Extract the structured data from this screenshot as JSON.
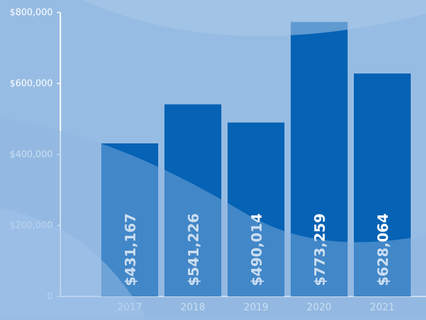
{
  "colors": {
    "background": "#97bce3",
    "bar": "#0562b4",
    "axis": "#ffffff",
    "text": "#ffffff"
  },
  "chart_data": {
    "type": "bar",
    "title": "",
    "xlabel": "",
    "ylabel": "",
    "categories": [
      "2017",
      "2018",
      "2019",
      "2020",
      "2021"
    ],
    "values": [
      431167,
      541226,
      490014,
      773259,
      628064
    ],
    "value_labels": [
      "$431,167",
      "$541,226",
      "$490,014",
      "$773,259",
      "$628,064"
    ],
    "ylim": [
      0,
      800000
    ],
    "yticks": [
      0,
      200000,
      400000,
      600000,
      800000
    ],
    "ytick_labels": [
      "0",
      "$200,000",
      "$400,000",
      "$600,000",
      "$800,000"
    ],
    "grid": false,
    "legend": "none",
    "data_label_orientation": "vertical-inside-bar"
  }
}
